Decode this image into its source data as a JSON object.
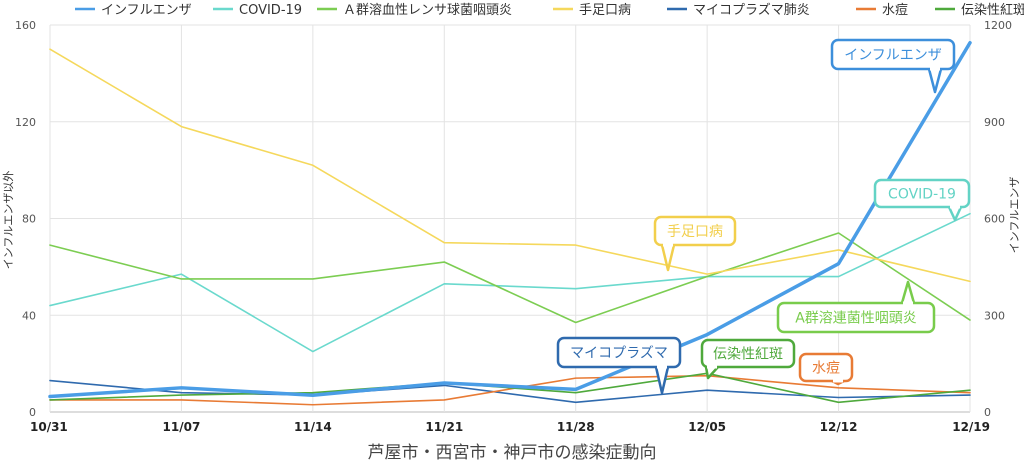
{
  "chart_data": {
    "type": "line",
    "title": "",
    "xlabel": "芦屋市・西宮市・神戸市の感染症動向",
    "ylabel_left": "インフルエンザ以外",
    "ylabel_right": "インフルエンザ",
    "categories": [
      "10/31",
      "11/07",
      "11/14",
      "11/21",
      "11/28",
      "12/05",
      "12/12",
      "12/19"
    ],
    "ylim_left": [
      0,
      160
    ],
    "ylim_right": [
      0,
      1200
    ],
    "yticks_left": [
      "0",
      "40",
      "80",
      "120",
      "160"
    ],
    "yticks_right": [
      "0",
      "300",
      "600",
      "900",
      "1200"
    ],
    "grid": true,
    "legend_position": "top",
    "series": [
      {
        "name": "インフルエンザ",
        "axis": "right",
        "color": "#4a9de6",
        "width": 3.5,
        "values": [
          48,
          75,
          52,
          90,
          70,
          240,
          460,
          1145
        ]
      },
      {
        "name": "COVID-19",
        "axis": "left",
        "color": "#6ad9cd",
        "width": 1.6,
        "values": [
          44,
          57,
          25,
          53,
          51,
          56,
          56,
          82
        ]
      },
      {
        "name": "Ａ群溶血性レンサ球菌咽頭炎",
        "axis": "left",
        "color": "#7ccd52",
        "width": 1.6,
        "values": [
          69,
          55,
          55,
          62,
          37,
          56,
          74,
          38
        ]
      },
      {
        "name": "手足口病",
        "axis": "left",
        "color": "#f5d85c",
        "width": 1.6,
        "values": [
          150,
          118,
          102,
          70,
          69,
          57,
          67,
          54
        ]
      },
      {
        "name": "マイコプラズマ肺炎",
        "axis": "left",
        "color": "#2f6aae",
        "width": 1.6,
        "values": [
          13,
          8,
          7,
          11,
          4,
          9,
          6,
          7
        ]
      },
      {
        "name": "水痘",
        "axis": "left",
        "color": "#e87b35",
        "width": 1.6,
        "values": [
          5,
          5,
          3,
          5,
          14,
          15,
          10,
          8
        ]
      },
      {
        "name": "伝染性紅斑",
        "axis": "left",
        "color": "#4fa93c",
        "width": 1.6,
        "values": [
          5,
          7,
          8,
          12,
          8,
          16,
          4,
          9
        ]
      }
    ],
    "callouts": [
      {
        "text": "インフルエンザ",
        "color": "#3d8fdb"
      },
      {
        "text": "COVID-19",
        "color": "#63d3c5"
      },
      {
        "text": "手足口病",
        "color": "#f2cf4c"
      },
      {
        "text": "A群溶連菌性咽頭炎",
        "color": "#79cc4c"
      },
      {
        "text": "マイコプラズマ",
        "color": "#2f6aae"
      },
      {
        "text": "伝染性紅斑",
        "color": "#4fa93c"
      },
      {
        "text": "水痘",
        "color": "#e87b35"
      }
    ]
  }
}
